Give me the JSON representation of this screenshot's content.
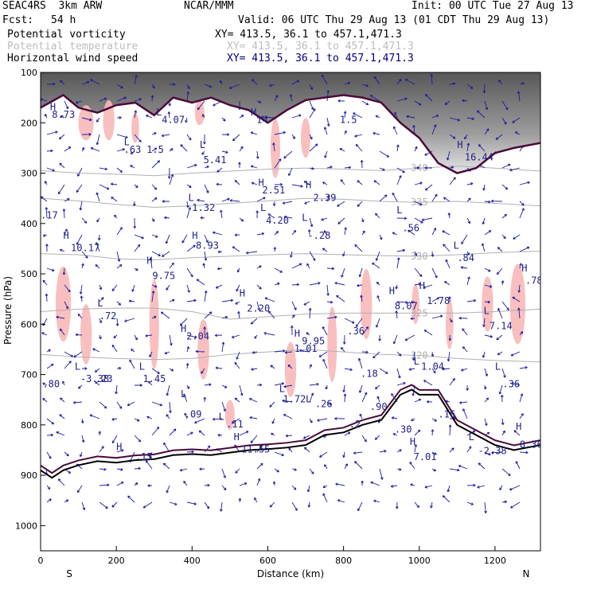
{
  "header": {
    "model": "SEAC4RS  3km ARW",
    "center": "NCAR/MMM",
    "init": "Init: 00 UTC Tue 27 Aug 13",
    "fcst_label": "Fcst:",
    "fcst_value": "54 h",
    "valid": "Valid: 06 UTC Thu 29 Aug 13 (01 CDT Thu 29 Aug 13)"
  },
  "fields": [
    {
      "name": "Potential vorticity",
      "xy": "XY= 413.5, 36.1 to 457.1,471.3",
      "color": "#000000",
      "xy_color": "#000000"
    },
    {
      "name": "Potential temperature",
      "xy": "XY= 413.5, 36.1 to 457.1,471.3",
      "color": "#bdbdbd",
      "xy_color": "#bdbdbd"
    },
    {
      "name": "Horizontal wind speed",
      "xy": "XY= 413.5, 36.1 to 457.1,471.3",
      "color": "#000000",
      "xy_color": "#000080"
    }
  ],
  "chart_data": {
    "type": "cross-section",
    "xlabel": "Distance (km)",
    "ylabel": "Pressure (hPa)",
    "xlim": [
      0,
      1320
    ],
    "ylim": [
      1050,
      100
    ],
    "x_ticks": [
      0,
      200,
      400,
      600,
      800,
      1000,
      1200
    ],
    "y_ticks": [
      100,
      200,
      300,
      400,
      500,
      600,
      700,
      800,
      900,
      1000
    ],
    "endpoint_labels": {
      "left": "S",
      "right": "N"
    },
    "colors": {
      "pv_shade": "#f8b8b8",
      "tropopause": "#4a0a3a",
      "wind_arrows": "#1a1aa0",
      "theta": "#b0b0b0",
      "annotations": "#20208a",
      "terrain": "#000000"
    },
    "theta_contours": [
      {
        "label": "340",
        "points": [
          [
            0,
            295
          ],
          [
            100,
            300
          ],
          [
            200,
            302
          ],
          [
            300,
            305
          ],
          [
            400,
            300
          ],
          [
            500,
            296
          ],
          [
            600,
            292
          ],
          [
            700,
            290
          ],
          [
            800,
            292
          ],
          [
            900,
            295
          ],
          [
            1000,
            290
          ],
          [
            1100,
            286
          ],
          [
            1200,
            290
          ],
          [
            1320,
            296
          ]
        ]
      },
      {
        "label": "335",
        "points": [
          [
            0,
            350
          ],
          [
            100,
            355
          ],
          [
            200,
            362
          ],
          [
            300,
            368
          ],
          [
            400,
            365
          ],
          [
            500,
            360
          ],
          [
            600,
            355
          ],
          [
            700,
            350
          ],
          [
            800,
            352
          ],
          [
            900,
            356
          ],
          [
            1000,
            358
          ],
          [
            1100,
            356
          ],
          [
            1200,
            360
          ],
          [
            1320,
            365
          ]
        ]
      },
      {
        "label": "330",
        "points": [
          [
            0,
            460
          ],
          [
            100,
            462
          ],
          [
            200,
            470
          ],
          [
            300,
            472
          ],
          [
            400,
            468
          ],
          [
            500,
            465
          ],
          [
            600,
            462
          ],
          [
            700,
            460
          ],
          [
            800,
            462
          ],
          [
            900,
            464
          ],
          [
            1000,
            465
          ],
          [
            1100,
            462
          ],
          [
            1200,
            458
          ],
          [
            1320,
            455
          ]
        ]
      },
      {
        "label": "325",
        "points": [
          [
            0,
            575
          ],
          [
            100,
            570
          ],
          [
            200,
            568
          ],
          [
            300,
            568
          ],
          [
            400,
            575
          ],
          [
            500,
            590
          ],
          [
            600,
            585
          ],
          [
            700,
            580
          ],
          [
            800,
            578
          ],
          [
            900,
            578
          ],
          [
            1000,
            578
          ],
          [
            1100,
            578
          ],
          [
            1200,
            575
          ],
          [
            1320,
            570
          ]
        ]
      },
      {
        "label": "320",
        "points": [
          [
            0,
            660
          ],
          [
            100,
            665
          ],
          [
            200,
            668
          ],
          [
            300,
            670
          ],
          [
            400,
            668
          ],
          [
            500,
            660
          ],
          [
            600,
            655
          ],
          [
            700,
            650
          ],
          [
            800,
            655
          ],
          [
            900,
            660
          ],
          [
            1000,
            662
          ],
          [
            1100,
            668
          ],
          [
            1200,
            672
          ],
          [
            1320,
            675
          ]
        ]
      }
    ],
    "tropopause_pressure": [
      [
        0,
        170
      ],
      [
        60,
        145
      ],
      [
        100,
        170
      ],
      [
        150,
        180
      ],
      [
        200,
        165
      ],
      [
        250,
        160
      ],
      [
        300,
        185
      ],
      [
        350,
        150
      ],
      [
        400,
        160
      ],
      [
        450,
        150
      ],
      [
        500,
        165
      ],
      [
        550,
        175
      ],
      [
        600,
        200
      ],
      [
        650,
        175
      ],
      [
        700,
        155
      ],
      [
        750,
        150
      ],
      [
        800,
        145
      ],
      [
        850,
        150
      ],
      [
        900,
        160
      ],
      [
        950,
        200
      ],
      [
        1000,
        230
      ],
      [
        1050,
        280
      ],
      [
        1100,
        300
      ],
      [
        1150,
        290
      ],
      [
        1200,
        260
      ],
      [
        1250,
        250
      ],
      [
        1320,
        240
      ]
    ],
    "terrain_pressure": [
      [
        0,
        890
      ],
      [
        30,
        905
      ],
      [
        60,
        890
      ],
      [
        100,
        880
      ],
      [
        150,
        872
      ],
      [
        200,
        875
      ],
      [
        250,
        870
      ],
      [
        300,
        868
      ],
      [
        350,
        860
      ],
      [
        400,
        858
      ],
      [
        450,
        860
      ],
      [
        500,
        855
      ],
      [
        550,
        850
      ],
      [
        600,
        848
      ],
      [
        650,
        845
      ],
      [
        700,
        840
      ],
      [
        750,
        820
      ],
      [
        800,
        815
      ],
      [
        850,
        800
      ],
      [
        900,
        790
      ],
      [
        950,
        740
      ],
      [
        980,
        730
      ],
      [
        1000,
        740
      ],
      [
        1050,
        740
      ],
      [
        1100,
        800
      ],
      [
        1150,
        820
      ],
      [
        1200,
        840
      ],
      [
        1250,
        850
      ],
      [
        1320,
        840
      ]
    ],
    "annotations": [
      {
        "text": "H",
        "x": 25,
        "y": 175
      },
      {
        "text": "8.73",
        "x": 30,
        "y": 190
      },
      {
        "text": "L",
        "x": 305,
        "y": 185
      },
      {
        "text": "4.07",
        "x": 320,
        "y": 200
      },
      {
        "text": "1.5",
        "x": 280,
        "y": 260
      },
      {
        "text": "L",
        "x": 220,
        "y": 245
      },
      {
        "text": ".63",
        "x": 220,
        "y": 260
      },
      {
        "text": "L",
        "x": 420,
        "y": 250
      },
      {
        "text": "5.41",
        "x": 430,
        "y": 280
      },
      {
        "text": "H",
        "x": 555,
        "y": 185
      },
      {
        "text": "14",
        "x": 570,
        "y": 200
      },
      {
        "text": "1.5",
        "x": 790,
        "y": 200
      },
      {
        "text": "H",
        "x": 1100,
        "y": 250
      },
      {
        "text": "16.44",
        "x": 1120,
        "y": 275
      },
      {
        "text": "H",
        "x": 575,
        "y": 325
      },
      {
        "text": "2.51",
        "x": 585,
        "y": 340
      },
      {
        "text": "H",
        "x": 700,
        "y": 330
      },
      {
        "text": "2.39",
        "x": 720,
        "y": 355
      },
      {
        "text": "L",
        "x": 390,
        "y": 355
      },
      {
        "text": "1.32",
        "x": 400,
        "y": 375
      },
      {
        "text": "L",
        "x": 580,
        "y": 375
      },
      {
        "text": "4.20",
        "x": 595,
        "y": 400
      },
      {
        "text": "L",
        "x": 690,
        "y": 395
      },
      {
        "text": "-.28",
        "x": 705,
        "y": 430
      },
      {
        "text": "L",
        "x": 940,
        "y": 380
      },
      {
        "text": ".56",
        "x": 955,
        "y": 415
      },
      {
        "text": ".17",
        "x": 0,
        "y": 390
      },
      {
        "text": "H",
        "x": 60,
        "y": 430
      },
      {
        "text": "10.17",
        "x": 80,
        "y": 455
      },
      {
        "text": "H",
        "x": 400,
        "y": 430
      },
      {
        "text": "8.93",
        "x": 410,
        "y": 450
      },
      {
        "text": "H",
        "x": 280,
        "y": 480
      },
      {
        "text": "9.75",
        "x": 295,
        "y": 510
      },
      {
        "text": "L",
        "x": 1090,
        "y": 450
      },
      {
        "text": ".84",
        "x": 1100,
        "y": 475
      },
      {
        "text": "H",
        "x": 1270,
        "y": 495
      },
      {
        "text": ".78",
        "x": 1280,
        "y": 520
      },
      {
        "text": "H",
        "x": 920,
        "y": 540
      },
      {
        "text": "8.07",
        "x": 935,
        "y": 570
      },
      {
        "text": "H",
        "x": 1000,
        "y": 530
      },
      {
        "text": "1.78",
        "x": 1020,
        "y": 560
      },
      {
        "text": "H",
        "x": 525,
        "y": 545
      },
      {
        "text": "2.20",
        "x": 545,
        "y": 575
      },
      {
        "text": "L",
        "x": 150,
        "y": 565
      },
      {
        "text": ".72",
        "x": 155,
        "y": 590
      },
      {
        "text": "L",
        "x": 1170,
        "y": 580
      },
      {
        "text": "7.14",
        "x": 1185,
        "y": 610
      },
      {
        "text": "H",
        "x": 370,
        "y": 615
      },
      {
        "text": "2.04",
        "x": 385,
        "y": 630
      },
      {
        "text": "H",
        "x": 670,
        "y": 625
      },
      {
        "text": "9.95",
        "x": 690,
        "y": 640
      },
      {
        "text": "1.01",
        "x": 670,
        "y": 655
      },
      {
        "text": ".36",
        "x": 810,
        "y": 620
      },
      {
        "text": "L",
        "x": 90,
        "y": 690
      },
      {
        "text": "-3.38",
        "x": 105,
        "y": 715
      },
      {
        "text": ".23",
        "x": 145,
        "y": 715
      },
      {
        "text": "L",
        "x": 260,
        "y": 690
      },
      {
        "text": "1.45",
        "x": 270,
        "y": 715
      },
      {
        "text": ".80",
        "x": 5,
        "y": 725
      },
      {
        "text": "L",
        "x": 985,
        "y": 680
      },
      {
        "text": "1.04",
        "x": 1005,
        "y": 690
      },
      {
        "text": ".18",
        "x": 845,
        "y": 705
      },
      {
        "text": "L",
        "x": 1200,
        "y": 690
      },
      {
        "text": ".36",
        "x": 1220,
        "y": 725
      },
      {
        "text": "L",
        "x": 370,
        "y": 745
      },
      {
        "text": ".09",
        "x": 380,
        "y": 785
      },
      {
        "text": "L",
        "x": 630,
        "y": 735
      },
      {
        "text": "1.72",
        "x": 640,
        "y": 755
      },
      {
        "text": "L",
        "x": 700,
        "y": 755
      },
      {
        "text": ".26",
        "x": 725,
        "y": 765
      },
      {
        "text": ".90",
        "x": 870,
        "y": 770
      },
      {
        "text": "L",
        "x": 470,
        "y": 790
      },
      {
        "text": ".11",
        "x": 490,
        "y": 805
      },
      {
        "text": "H",
        "x": 510,
        "y": 830
      },
      {
        "text": "11.55",
        "x": 530,
        "y": 855
      },
      {
        "text": ".30",
        "x": 935,
        "y": 815
      },
      {
        "text": ".2",
        "x": 815,
        "y": 805
      },
      {
        "text": ".16",
        "x": 1050,
        "y": 785
      },
      {
        "text": "L",
        "x": 1130,
        "y": 830
      },
      {
        "text": "-2.38",
        "x": 1155,
        "y": 858
      },
      {
        "text": "H",
        "x": 1255,
        "y": 810
      },
      {
        "text": "8.36",
        "x": 1265,
        "y": 845
      },
      {
        "text": "H",
        "x": 200,
        "y": 850
      },
      {
        "text": ".15",
        "x": 250,
        "y": 870
      },
      {
        "text": "H",
        "x": 975,
        "y": 840
      },
      {
        "text": "7.01",
        "x": 985,
        "y": 870
      }
    ]
  }
}
